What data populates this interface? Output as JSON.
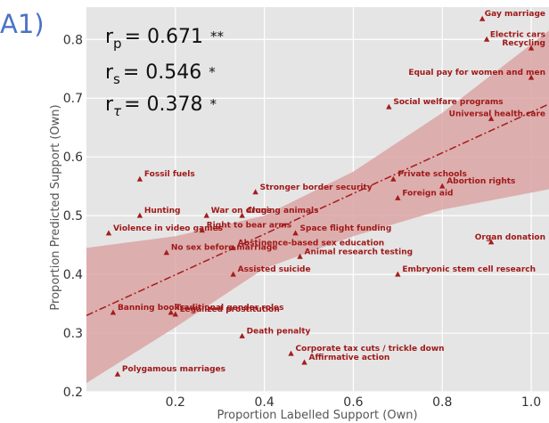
{
  "panel_label": "A1)",
  "chart_data": {
    "type": "scatter",
    "xlabel": "Proportion Labelled Support (Own)",
    "ylabel": "Proportion Predicted Support (Own)",
    "xlim": [
      0.0,
      1.04
    ],
    "ylim": [
      0.2,
      0.855
    ],
    "xticks": [
      0.2,
      0.4,
      0.6,
      0.8,
      1.0
    ],
    "yticks": [
      0.2,
      0.3,
      0.4,
      0.5,
      0.6,
      0.7,
      0.8
    ],
    "grid": true,
    "marker": "triangle",
    "marker_color": "#a51c1c",
    "background_color": "#e5e5e5",
    "regression_line": {
      "style": "dash-dot",
      "color": "#a51c1c",
      "x": [
        0.0,
        1.04
      ],
      "y": [
        0.33,
        0.69
      ]
    },
    "confidence_band": {
      "color": "#dca4a4",
      "x": [
        0.0,
        0.2,
        0.4,
        0.6,
        0.8,
        1.04
      ],
      "upper": [
        0.445,
        0.465,
        0.5,
        0.575,
        0.675,
        0.815
      ],
      "lower": [
        0.215,
        0.31,
        0.41,
        0.465,
        0.51,
        0.545
      ]
    },
    "stats": [
      {
        "symbol": "r",
        "sub": "p",
        "value": "= 0.671",
        "sig": "**"
      },
      {
        "symbol": "r",
        "sub": "s",
        "value": "= 0.546",
        "sig": "*"
      },
      {
        "symbol": "r",
        "sub": "τ",
        "value": "= 0.378",
        "sig": "*"
      }
    ],
    "points": [
      {
        "label": "Gay marriage",
        "x": 0.89,
        "y": 0.835
      },
      {
        "label": "Electric cars",
        "x": 0.9,
        "y": 0.8
      },
      {
        "label": "Recycling",
        "x": 1.0,
        "y": 0.785
      },
      {
        "label": "Equal pay for women and men",
        "x": 1.0,
        "y": 0.735
      },
      {
        "label": "Social welfare programs",
        "x": 0.68,
        "y": 0.685
      },
      {
        "label": "Universal health care",
        "x": 0.91,
        "y": 0.665
      },
      {
        "label": "Fossil fuels",
        "x": 0.12,
        "y": 0.562
      },
      {
        "label": "Private schools",
        "x": 0.69,
        "y": 0.562
      },
      {
        "label": "Stronger border security",
        "x": 0.38,
        "y": 0.54
      },
      {
        "label": "Abortion rights",
        "x": 0.8,
        "y": 0.55
      },
      {
        "label": "Foreign aid",
        "x": 0.7,
        "y": 0.53
      },
      {
        "label": "Hunting",
        "x": 0.12,
        "y": 0.5
      },
      {
        "label": "War on drugs",
        "x": 0.27,
        "y": 0.5
      },
      {
        "label": "Cloning animals",
        "x": 0.35,
        "y": 0.5
      },
      {
        "label": "Right to bear arms",
        "x": 0.26,
        "y": 0.475
      },
      {
        "label": "Violence in video games",
        "x": 0.05,
        "y": 0.47
      },
      {
        "label": "Space flight funding",
        "x": 0.47,
        "y": 0.47
      },
      {
        "label": "Organ donation",
        "x": 0.91,
        "y": 0.455
      },
      {
        "label": "Abstinence-based sex education",
        "x": 0.33,
        "y": 0.445
      },
      {
        "label": "No sex before marriage",
        "x": 0.18,
        "y": 0.437
      },
      {
        "label": "Animal research testing",
        "x": 0.48,
        "y": 0.43
      },
      {
        "label": "Embryonic stem cell research",
        "x": 0.7,
        "y": 0.4
      },
      {
        "label": "Assisted suicide",
        "x": 0.33,
        "y": 0.4
      },
      {
        "label": "Traditional gender roles",
        "x": 0.19,
        "y": 0.335
      },
      {
        "label": "Banning books",
        "x": 0.06,
        "y": 0.335
      },
      {
        "label": "Legalized prostitution",
        "x": 0.2,
        "y": 0.332
      },
      {
        "label": "Death penalty",
        "x": 0.35,
        "y": 0.295
      },
      {
        "label": "Corporate tax cuts / trickle down",
        "x": 0.46,
        "y": 0.265
      },
      {
        "label": "Affirmative action",
        "x": 0.49,
        "y": 0.25
      },
      {
        "label": "Polygamous marriages",
        "x": 0.07,
        "y": 0.23
      }
    ]
  }
}
